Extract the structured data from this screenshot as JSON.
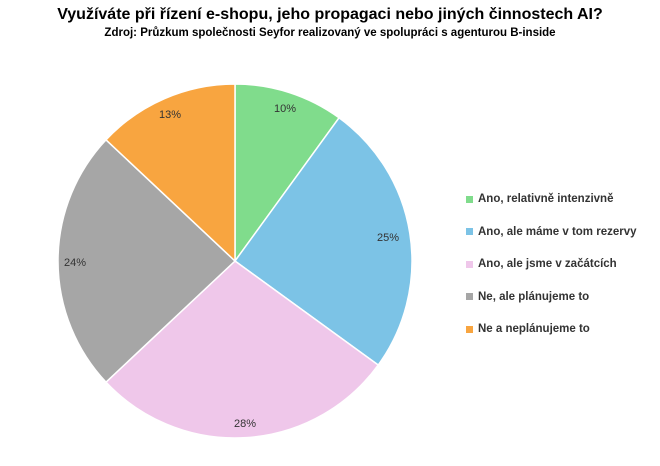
{
  "chart_data": {
    "type": "pie",
    "title": "Využíváte při řízení e-shopu, jeho propagaci nebo jiných činnostech AI?",
    "subtitle": "Zdroj: Průzkum společnosti Seyfor realizovaný ve spolupráci s agenturou B-inside",
    "legend_position": "right",
    "slices": [
      {
        "label": "Ano, relativně intenzivně",
        "value": 10,
        "data_label": "10%",
        "color": "#80dc8c"
      },
      {
        "label": "Ano, ale máme v tom rezervy",
        "value": 25,
        "data_label": "25%",
        "color": "#7cc3e6"
      },
      {
        "label": "Ano, ale jsme v začátcích",
        "value": 28,
        "data_label": "28%",
        "color": "#efc7ea"
      },
      {
        "label": "Ne, ale plánujeme to",
        "value": 24,
        "data_label": "24%",
        "color": "#a6a6a6"
      },
      {
        "label": "Ne a neplánujeme to",
        "value": 13,
        "data_label": "13%",
        "color": "#f8a540"
      }
    ]
  }
}
